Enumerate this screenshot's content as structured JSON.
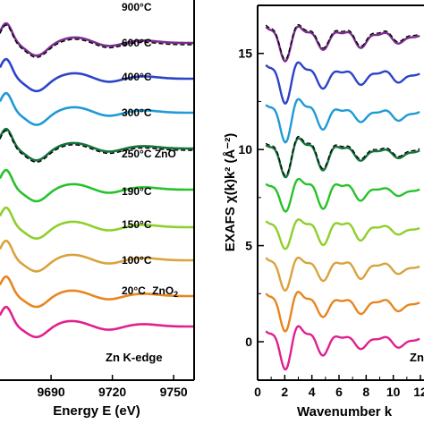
{
  "chart_data": [
    {
      "type": "line",
      "xlabel": "Energy E (eV)",
      "ylabel": "",
      "xlim": [
        9665,
        9760
      ],
      "xticks": [
        9690,
        9720,
        9750
      ],
      "annotation": "Zn K-edge",
      "series": [
        {
          "name": "20°C",
          "suffix": "ZnO",
          "sub": "2",
          "color": "#e0208f",
          "fit": false
        },
        {
          "name": "100°C",
          "suffix": "",
          "sub": "",
          "color": "#e8851f",
          "fit": false
        },
        {
          "name": "150°C",
          "suffix": "",
          "sub": "",
          "color": "#d9a33c",
          "fit": false
        },
        {
          "name": "190°C",
          "suffix": "",
          "sub": "",
          "color": "#8fcf2a",
          "fit": false
        },
        {
          "name": "250°C ZnO",
          "suffix": "",
          "sub": "",
          "color": "#27c22b",
          "fit": false
        },
        {
          "name": "300°C",
          "suffix": "",
          "sub": "",
          "color": "#13733a",
          "fit": true
        },
        {
          "name": "400°C",
          "suffix": "",
          "sub": "",
          "color": "#1e9ad6",
          "fit": false
        },
        {
          "name": "600°C",
          "suffix": "",
          "sub": "",
          "color": "#2c43c9",
          "fit": false
        },
        {
          "name": "900°C",
          "suffix": "",
          "sub": "",
          "color": "#7a2d8f",
          "fit": true
        }
      ]
    },
    {
      "type": "line",
      "xlabel": "Wavenumber k",
      "ylabel": "EXAFS χ(k)k² (Å⁻²)",
      "xlim": [
        0,
        12
      ],
      "ylim": [
        -2,
        17.5
      ],
      "xticks": [
        0,
        2,
        4,
        6,
        8,
        10,
        12
      ],
      "yticks": [
        0,
        5,
        10,
        15
      ],
      "xtick_labels": [
        "0",
        "2",
        "4",
        "6",
        "8",
        "10",
        "12"
      ],
      "annotation": "Zn",
      "offsets": [
        0,
        1.9,
        3.8,
        5.8,
        7.8,
        9.8,
        11.8,
        13.8,
        15.8
      ]
    }
  ]
}
